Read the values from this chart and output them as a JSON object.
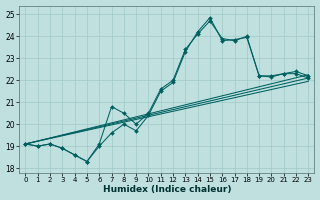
{
  "title": "",
  "xlabel": "Humidex (Indice chaleur)",
  "bg_color": "#c0e0e0",
  "grid_color": "#a0c8c8",
  "line_color": "#006060",
  "xlim": [
    -0.5,
    23.5
  ],
  "ylim": [
    17.8,
    25.4
  ],
  "xticks": [
    0,
    1,
    2,
    3,
    4,
    5,
    6,
    7,
    8,
    9,
    10,
    11,
    12,
    13,
    14,
    15,
    16,
    17,
    18,
    19,
    20,
    21,
    22,
    23
  ],
  "yticks": [
    18,
    19,
    20,
    21,
    22,
    23,
    24,
    25
  ],
  "line1_x": [
    0,
    1,
    2,
    3,
    4,
    5,
    6,
    7,
    8,
    9,
    10,
    11,
    12,
    13,
    14,
    15,
    16,
    17,
    18,
    19,
    20,
    21,
    22,
    23
  ],
  "line1_y": [
    19.1,
    19.0,
    19.1,
    18.9,
    18.6,
    18.3,
    19.0,
    19.6,
    20.0,
    19.7,
    20.4,
    21.5,
    21.9,
    23.3,
    24.2,
    24.85,
    23.8,
    23.85,
    23.95,
    22.2,
    22.15,
    22.3,
    22.4,
    22.2
  ],
  "line2_x": [
    0,
    1,
    2,
    3,
    4,
    5,
    6,
    7,
    8,
    9,
    10,
    11,
    12,
    13,
    14,
    15,
    16,
    17,
    18,
    19,
    20,
    21,
    22,
    23
  ],
  "line2_y": [
    19.1,
    19.0,
    19.1,
    18.9,
    18.6,
    18.3,
    19.1,
    20.8,
    20.5,
    20.0,
    20.5,
    21.6,
    22.0,
    23.4,
    24.1,
    24.7,
    23.9,
    23.8,
    24.0,
    22.2,
    22.2,
    22.3,
    22.3,
    22.1
  ],
  "line3_x": [
    0,
    23
  ],
  "line3_y": [
    19.1,
    22.25
  ],
  "line4_x": [
    0,
    23
  ],
  "line4_y": [
    19.1,
    22.1
  ],
  "line5_x": [
    0,
    23
  ],
  "line5_y": [
    19.1,
    21.95
  ]
}
